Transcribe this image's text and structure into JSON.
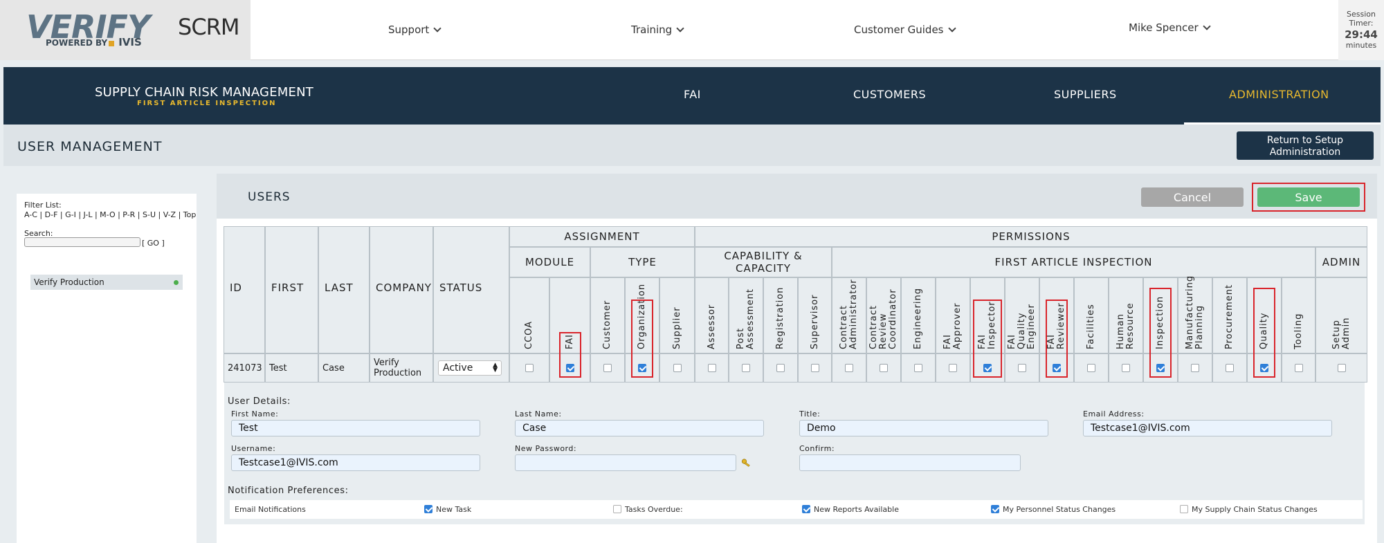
{
  "logo": {
    "name": "VERIFY",
    "powered_by": "POWERED BY",
    "ivis": "IVIS",
    "product": "SCRM"
  },
  "topnav": {
    "support": "Support",
    "training": "Training",
    "customer_guides": "Customer Guides",
    "user": "Mike Spencer"
  },
  "session": {
    "label": "Session Timer:",
    "time": "29:44",
    "unit": "minutes"
  },
  "mainnav": {
    "brand_title": "SUPPLY CHAIN RISK MANAGEMENT",
    "brand_sub": "FIRST ARTICLE INSPECTION",
    "items": [
      "FAI",
      "CUSTOMERS",
      "SUPPLIERS",
      "ADMINISTRATION"
    ],
    "active": "ADMINISTRATION"
  },
  "page": {
    "title": "USER MANAGEMENT",
    "return_label": "Return to Setup Administration"
  },
  "sidebar": {
    "filter_label": "Filter List:",
    "filter_links": "A-C | D-F | G-I | J-L | M-O | P-R | S-U | V-Z | Top",
    "search_label": "Search:",
    "go_label": "[ GO ]",
    "org": "Verify Production"
  },
  "users": {
    "title": "USERS",
    "cancel": "Cancel",
    "save": "Save"
  },
  "table": {
    "col_id": "ID",
    "col_first": "FIRST",
    "col_last": "LAST",
    "col_company": "COMPANY",
    "col_status": "STATUS",
    "assignment": "ASSIGNMENT",
    "permissions": "PERMISSIONS",
    "module": "MODULE",
    "type": "TYPE",
    "capability": "CAPABILITY &\nCAPACITY",
    "fai_group": "FIRST ARTICLE INSPECTION",
    "admin": "ADMIN",
    "columns": [
      {
        "label": "CCOA",
        "checked": false,
        "hl": false
      },
      {
        "label": "FAI",
        "checked": true,
        "hl": true
      },
      {
        "label": "Customer",
        "checked": false,
        "hl": false
      },
      {
        "label": "Organization",
        "checked": true,
        "hl": true
      },
      {
        "label": "Supplier",
        "checked": false,
        "hl": false
      },
      {
        "label": "Assessor",
        "checked": false,
        "hl": false
      },
      {
        "label": "Post\nAssessment",
        "checked": false,
        "hl": false
      },
      {
        "label": "Registration",
        "checked": false,
        "hl": false
      },
      {
        "label": "Supervisor",
        "checked": false,
        "hl": false
      },
      {
        "label": "Contract\nAdministrator",
        "checked": false,
        "hl": false
      },
      {
        "label": "Contract\nReview\nCoordinator",
        "checked": false,
        "hl": false
      },
      {
        "label": "Engineering",
        "checked": false,
        "hl": false
      },
      {
        "label": "FAI\nApprover",
        "checked": false,
        "hl": false
      },
      {
        "label": "FAI\nInspector",
        "checked": true,
        "hl": true
      },
      {
        "label": "FAI\nQuality\nEngineer",
        "checked": false,
        "hl": false
      },
      {
        "label": "FAI\nReviewer",
        "checked": true,
        "hl": true
      },
      {
        "label": "Facilities",
        "checked": false,
        "hl": false
      },
      {
        "label": "Human\nResource",
        "checked": false,
        "hl": false
      },
      {
        "label": "Inspection",
        "checked": true,
        "hl": true
      },
      {
        "label": "Manufacturing\nPlanning",
        "checked": false,
        "hl": false
      },
      {
        "label": "Procurement",
        "checked": false,
        "hl": false
      },
      {
        "label": "Quality",
        "checked": true,
        "hl": true
      },
      {
        "label": "Tooling",
        "checked": false,
        "hl": false
      },
      {
        "label": "Setup\nAdmin",
        "checked": false,
        "hl": false
      }
    ],
    "row": {
      "id": "241073",
      "first": "Test",
      "last": "Case",
      "company": "Verify\nProduction",
      "status": "Active"
    }
  },
  "details": {
    "title": "User Details:",
    "first_name_label": "First Name:",
    "first_name": "Test",
    "last_name_label": "Last Name:",
    "last_name": "Case",
    "title_label": "Title:",
    "title_value": "Demo",
    "email_label": "Email Address:",
    "email": "Testcase1@IVIS.com",
    "username_label": "Username:",
    "username": "Testcase1@IVIS.com",
    "password_label": "New Password:",
    "password": "",
    "confirm_label": "Confirm:",
    "confirm": ""
  },
  "notifications": {
    "title": "Notification Preferences:",
    "email_label": "Email Notifications",
    "items": [
      {
        "label": "New Task",
        "checked": true
      },
      {
        "label": "Tasks Overdue:",
        "checked": false
      },
      {
        "label": "New Reports Available",
        "checked": true
      },
      {
        "label": "My Personnel Status Changes",
        "checked": true
      },
      {
        "label": "My Supply Chain Status Changes",
        "checked": false
      }
    ]
  }
}
